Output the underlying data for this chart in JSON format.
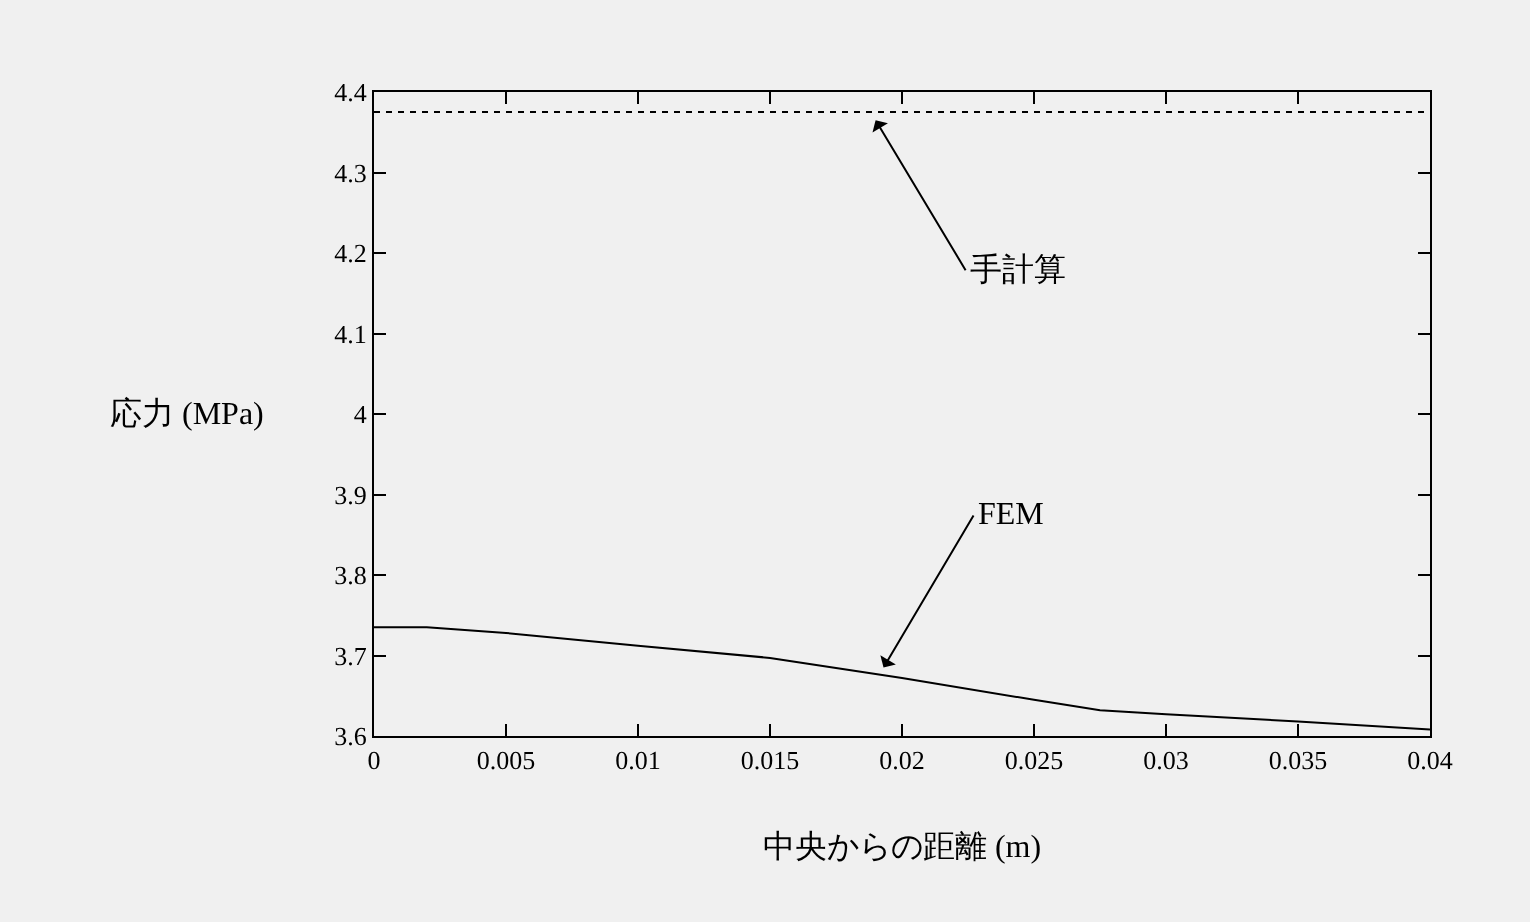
{
  "chart_data": {
    "type": "line",
    "xlabel": "中央からの距離 (m)",
    "ylabel": "応力 (MPa)",
    "series": [
      {
        "x": [
          0,
          0.04
        ],
        "values": [
          4.375,
          4.375
        ],
        "color": "#000000",
        "line_style": "dotted"
      },
      {
        "x": [
          0,
          0.002,
          0.005,
          0.01,
          0.015,
          0.02,
          0.025,
          0.0275,
          0.03,
          0.035,
          0.04
        ],
        "values": [
          3.735,
          3.735,
          3.728,
          3.712,
          3.697,
          3.672,
          3.645,
          3.632,
          3.627,
          3.618,
          3.608
        ],
        "color": "#000000",
        "line_style": "solid"
      }
    ],
    "annotations": [
      {
        "text": "手計算",
        "x": 0.019,
        "y": 4.365
      },
      {
        "text": "FEM",
        "x": 0.0193,
        "y": 3.685
      }
    ],
    "xlim": [
      0,
      0.04
    ],
    "xticks": [
      0,
      0.005,
      0.01,
      0.015,
      0.02,
      0.025,
      0.03,
      0.035,
      0.04
    ],
    "ylim": [
      3.6,
      4.4
    ],
    "yticks": [
      3.6,
      3.7,
      3.8,
      3.9,
      4,
      4.1,
      4.2,
      4.3,
      4.4
    ],
    "grid": false,
    "legend": false,
    "marker": "none"
  }
}
